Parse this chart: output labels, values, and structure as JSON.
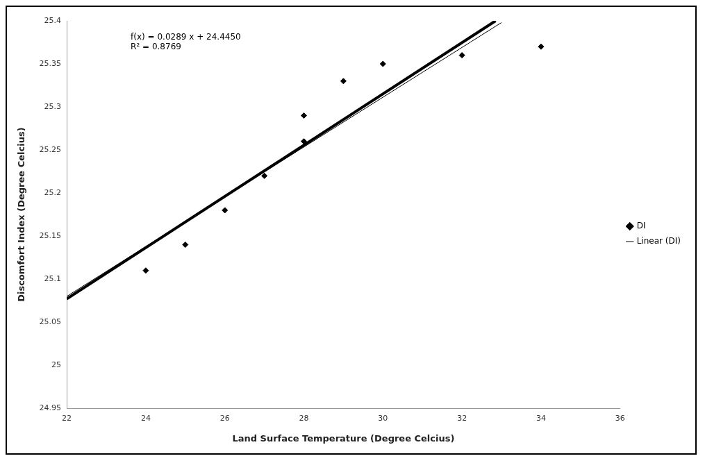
{
  "chart_data": {
    "type": "scatter",
    "xlabel": "Land Surface Temperature (Degree Celcius)",
    "ylabel": "Discomfort Index (Degree Celcius)",
    "annotations": [
      "f(x) = 0.0289 x + 24.4450",
      "R² = 0.8769"
    ],
    "series": [
      {
        "name": "DI",
        "type": "scatter",
        "color": "#000000",
        "marker": "diamond",
        "x": [
          24,
          25,
          26,
          27,
          28,
          28,
          29,
          30,
          32,
          34
        ],
        "values": [
          25.11,
          25.14,
          25.18,
          25.22,
          25.29,
          25.26,
          25.33,
          25.35,
          25.36,
          25.37
        ]
      },
      {
        "type": "line",
        "color": "#000000",
        "marker": "none",
        "line_style": "solid",
        "x": [
          22,
          32.85
        ],
        "values": [
          25.077,
          25.4
        ]
      },
      {
        "name": "Linear (DI)",
        "type": "line",
        "color": "#000000",
        "marker": "none",
        "line_style": "solid",
        "x": [
          22,
          33
        ],
        "values": [
          25.08,
          25.398
        ]
      }
    ],
    "xlim": [
      22,
      36
    ],
    "xticks": [
      22,
      24,
      26,
      28,
      30,
      32,
      34,
      36
    ],
    "ylim": [
      24.95,
      25.4
    ],
    "yticks": [
      24.95,
      25,
      25.05,
      25.1,
      25.15,
      25.2,
      25.25,
      25.3,
      25.35,
      25.4
    ],
    "grid": false,
    "legend": "right"
  }
}
